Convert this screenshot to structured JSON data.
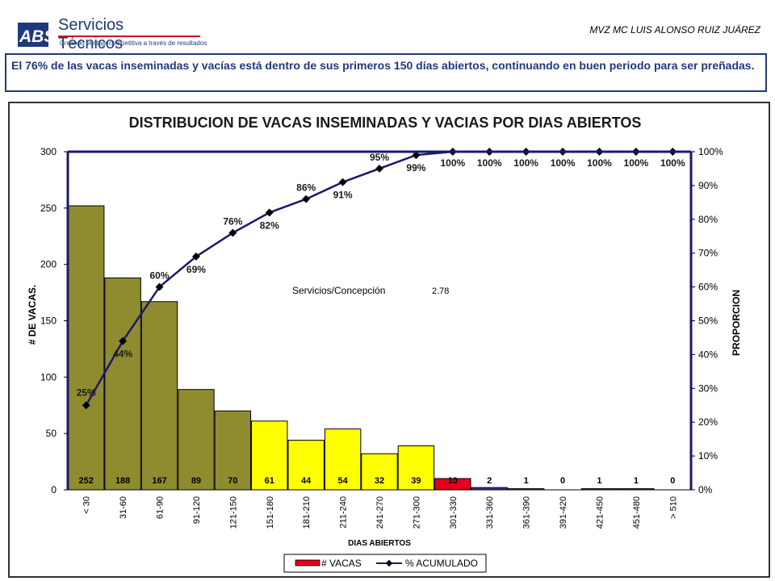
{
  "header": {
    "logo_text": "ABS",
    "brand": "Servicios Técnicos",
    "tagline": "Creando ventaja competitiva a través de resultados",
    "author": "MVZ MC LUIS ALONSO RUIZ JUÁREZ"
  },
  "headline": "El 76% de las vacas inseminadas y vacías está dentro de sus primeros 150 días abiertos, continuando en buen periodo para ser preñadas.",
  "annotation": {
    "label": "Servicios/Concepción",
    "value": "2.78"
  },
  "colors": {
    "olive": "#8f8c2f",
    "yellow": "#ffff00",
    "red": "#e3001b",
    "purple": "#4b2c8a",
    "navy": "#1a1a6e"
  },
  "chart_data": {
    "type": "bar",
    "title": "DISTRIBUCION DE VACAS INSEMINADAS Y VACIAS POR DIAS ABIERTOS",
    "xlabel": "DIAS ABIERTOS",
    "ylabel": "# DE VACAS.",
    "y2label": "PROPORCION",
    "categories": [
      "< 30",
      "31-60",
      "61-90",
      "91-120",
      "121-150",
      "151-180",
      "181-210",
      "211-240",
      "241-270",
      "271-300",
      "301-330",
      "331-360",
      "361-390",
      "391-420",
      "421-450",
      "451-480",
      "> 510"
    ],
    "ylim": [
      0,
      300
    ],
    "yticks": [
      "0",
      "50",
      "100",
      "150",
      "200",
      "250",
      "300"
    ],
    "y2lim": [
      0,
      100
    ],
    "y2ticks": [
      "0%",
      "10%",
      "20%",
      "30%",
      "40%",
      "50%",
      "60%",
      "70%",
      "80%",
      "90%",
      "100%"
    ],
    "series": [
      {
        "name": "# VACAS",
        "type": "bar",
        "values": [
          252,
          188,
          167,
          89,
          70,
          61,
          44,
          54,
          32,
          39,
          10,
          2,
          1,
          0,
          1,
          1,
          0
        ],
        "labels": [
          "252",
          "188",
          "167",
          "89",
          "70",
          "61",
          "44",
          "54",
          "32",
          "39",
          "10",
          "2",
          "1",
          "0",
          "1",
          "1",
          "0"
        ],
        "bar_colors": [
          "olive",
          "olive",
          "olive",
          "olive",
          "olive",
          "yellow",
          "yellow",
          "yellow",
          "yellow",
          "yellow",
          "red",
          "purple",
          "purple",
          "purple",
          "purple",
          "purple",
          "purple"
        ]
      },
      {
        "name": "% ACUMULADO",
        "type": "line",
        "values": [
          25,
          44,
          60,
          69,
          76,
          82,
          86,
          91,
          95,
          99,
          100,
          100,
          100,
          100,
          100,
          100,
          100
        ],
        "labels": [
          "25%",
          "44%",
          "60%",
          "69%",
          "76%",
          "82%",
          "86%",
          "91%",
          "95%",
          "99%",
          "100%",
          "100%",
          "100%",
          "100%",
          "100%",
          "100%",
          "100%"
        ]
      }
    ],
    "legend_position": "bottom-center"
  }
}
